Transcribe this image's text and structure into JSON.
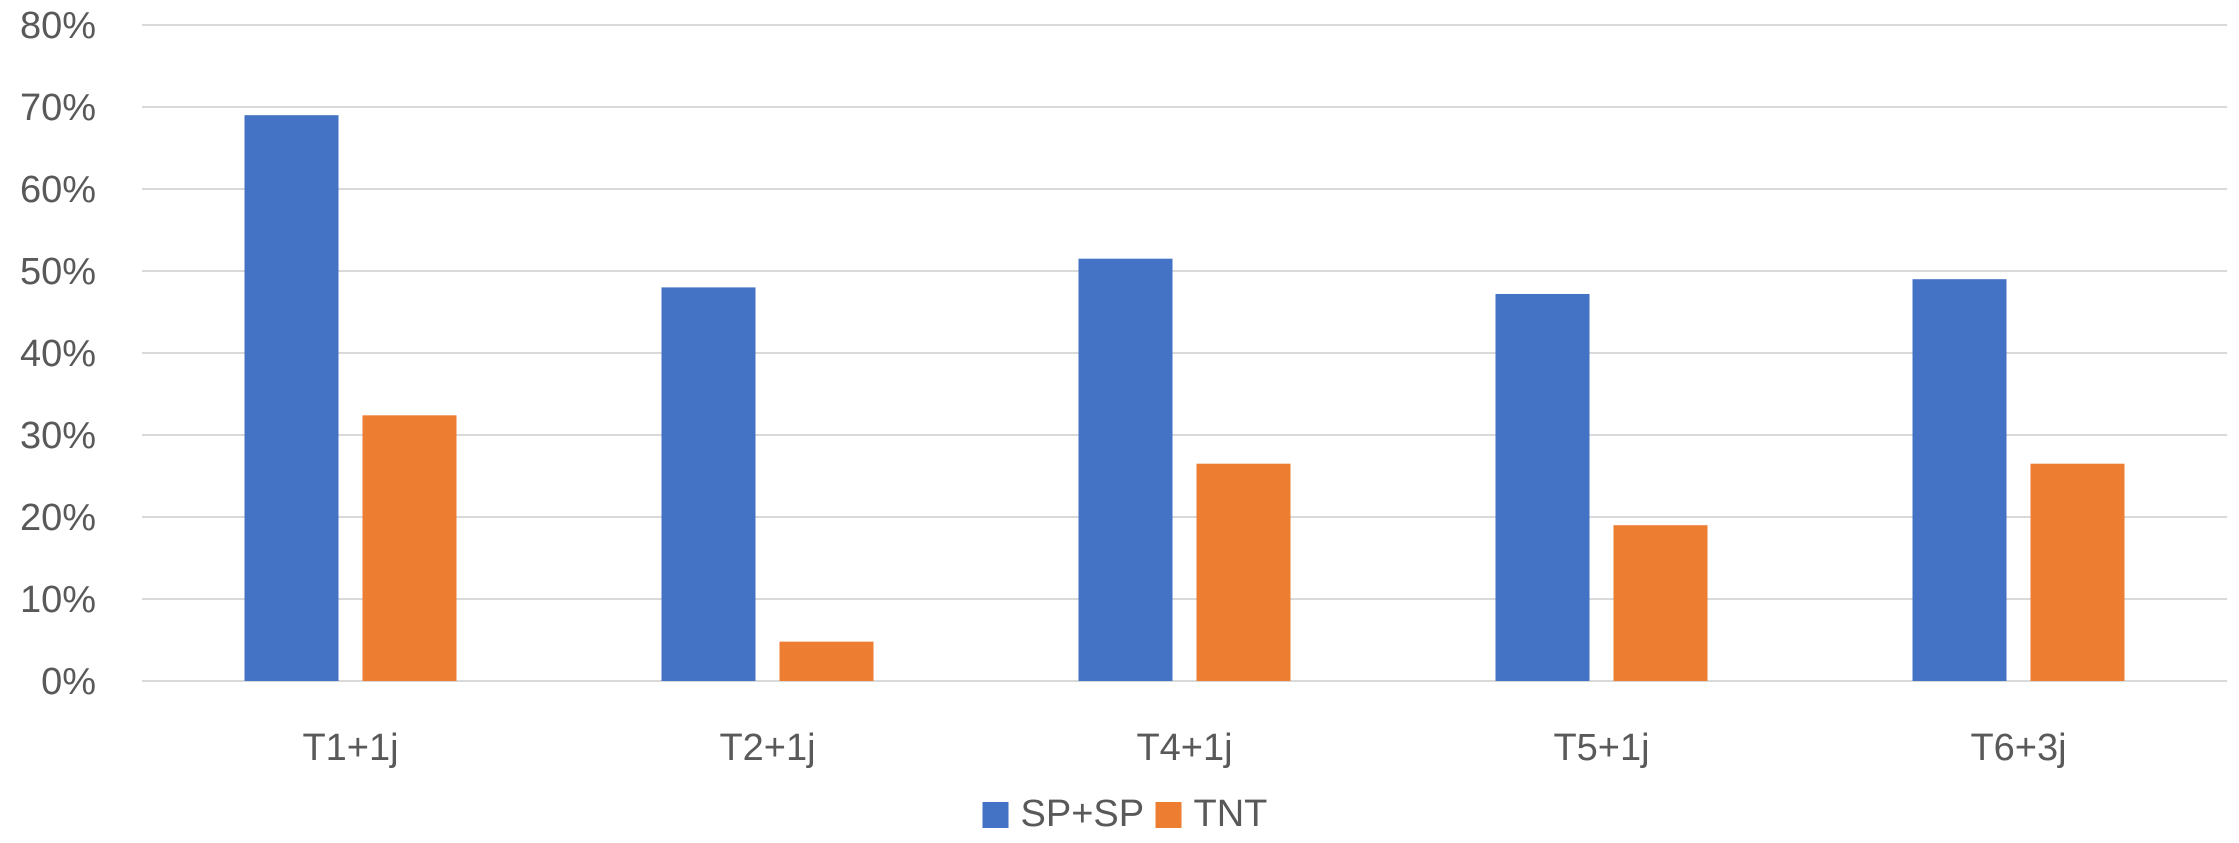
{
  "chart_data": {
    "type": "bar",
    "title": "",
    "xlabel": "",
    "ylabel": "",
    "categories": [
      "T1+1j",
      "T2+1j",
      "T4+1j",
      "T5+1j",
      "T6+3j"
    ],
    "series": [
      {
        "name": "SP+SP",
        "color": "#4472c4",
        "values": [
          0.69,
          0.48,
          0.515,
          0.472,
          0.49
        ]
      },
      {
        "name": "TNT",
        "color": "#ed7d31",
        "values": [
          0.324,
          0.048,
          0.265,
          0.19,
          0.265
        ]
      }
    ],
    "ylim": [
      0,
      0.8
    ],
    "yticks": [
      0,
      0.1,
      0.2,
      0.3,
      0.4,
      0.5,
      0.6,
      0.7,
      0.8
    ],
    "ytick_labels": [
      "0%",
      "10%",
      "20%",
      "30%",
      "40%",
      "50%",
      "60%",
      "70%",
      "80%"
    ],
    "grid": true,
    "legend_position": "bottom-center"
  }
}
